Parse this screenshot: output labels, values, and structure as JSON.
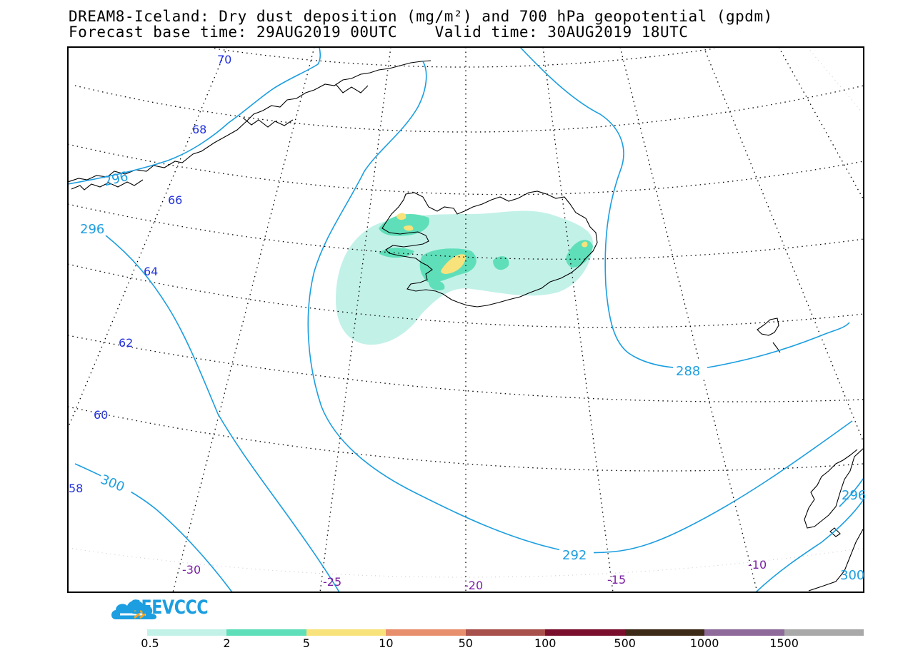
{
  "title": {
    "line1": "DREAM8-Iceland: Dry dust deposition (mg/m²) and 700 hPa geopotential (gpdm)",
    "line2": "Forecast base time: 29AUG2019 00UTC    Valid time: 30AUG2019 18UTC"
  },
  "logo": {
    "text": "SEEVCCC",
    "icon": "cloud-icon",
    "color": "#1c9ee0"
  },
  "map": {
    "frame_color": "#000000",
    "contour_color": "#1c9ee0",
    "lat_label_color": "#2233dd",
    "lon_label_color": "#7b1fa2",
    "contour_labels": [
      "296",
      "300",
      "288",
      "292"
    ],
    "lat_labels": [
      "70",
      "68",
      "66",
      "64",
      "62",
      "60",
      "58"
    ],
    "lon_labels": [
      "-30",
      "-25",
      "-20",
      "-15",
      "-10"
    ],
    "contour_label_clipped": [
      "296",
      "296",
      "300"
    ]
  },
  "legend": {
    "labels": [
      "0.5",
      "2",
      "5",
      "10",
      "50",
      "100",
      "500",
      "1000",
      "1500"
    ],
    "colors": [
      "#c2f1e8",
      "#5fdfb9",
      "#f8e27c",
      "#e8906d",
      "#a8504c",
      "#7a0f2d",
      "#3d2a17",
      "#8e6a9a",
      "#a9a9a9"
    ]
  }
}
